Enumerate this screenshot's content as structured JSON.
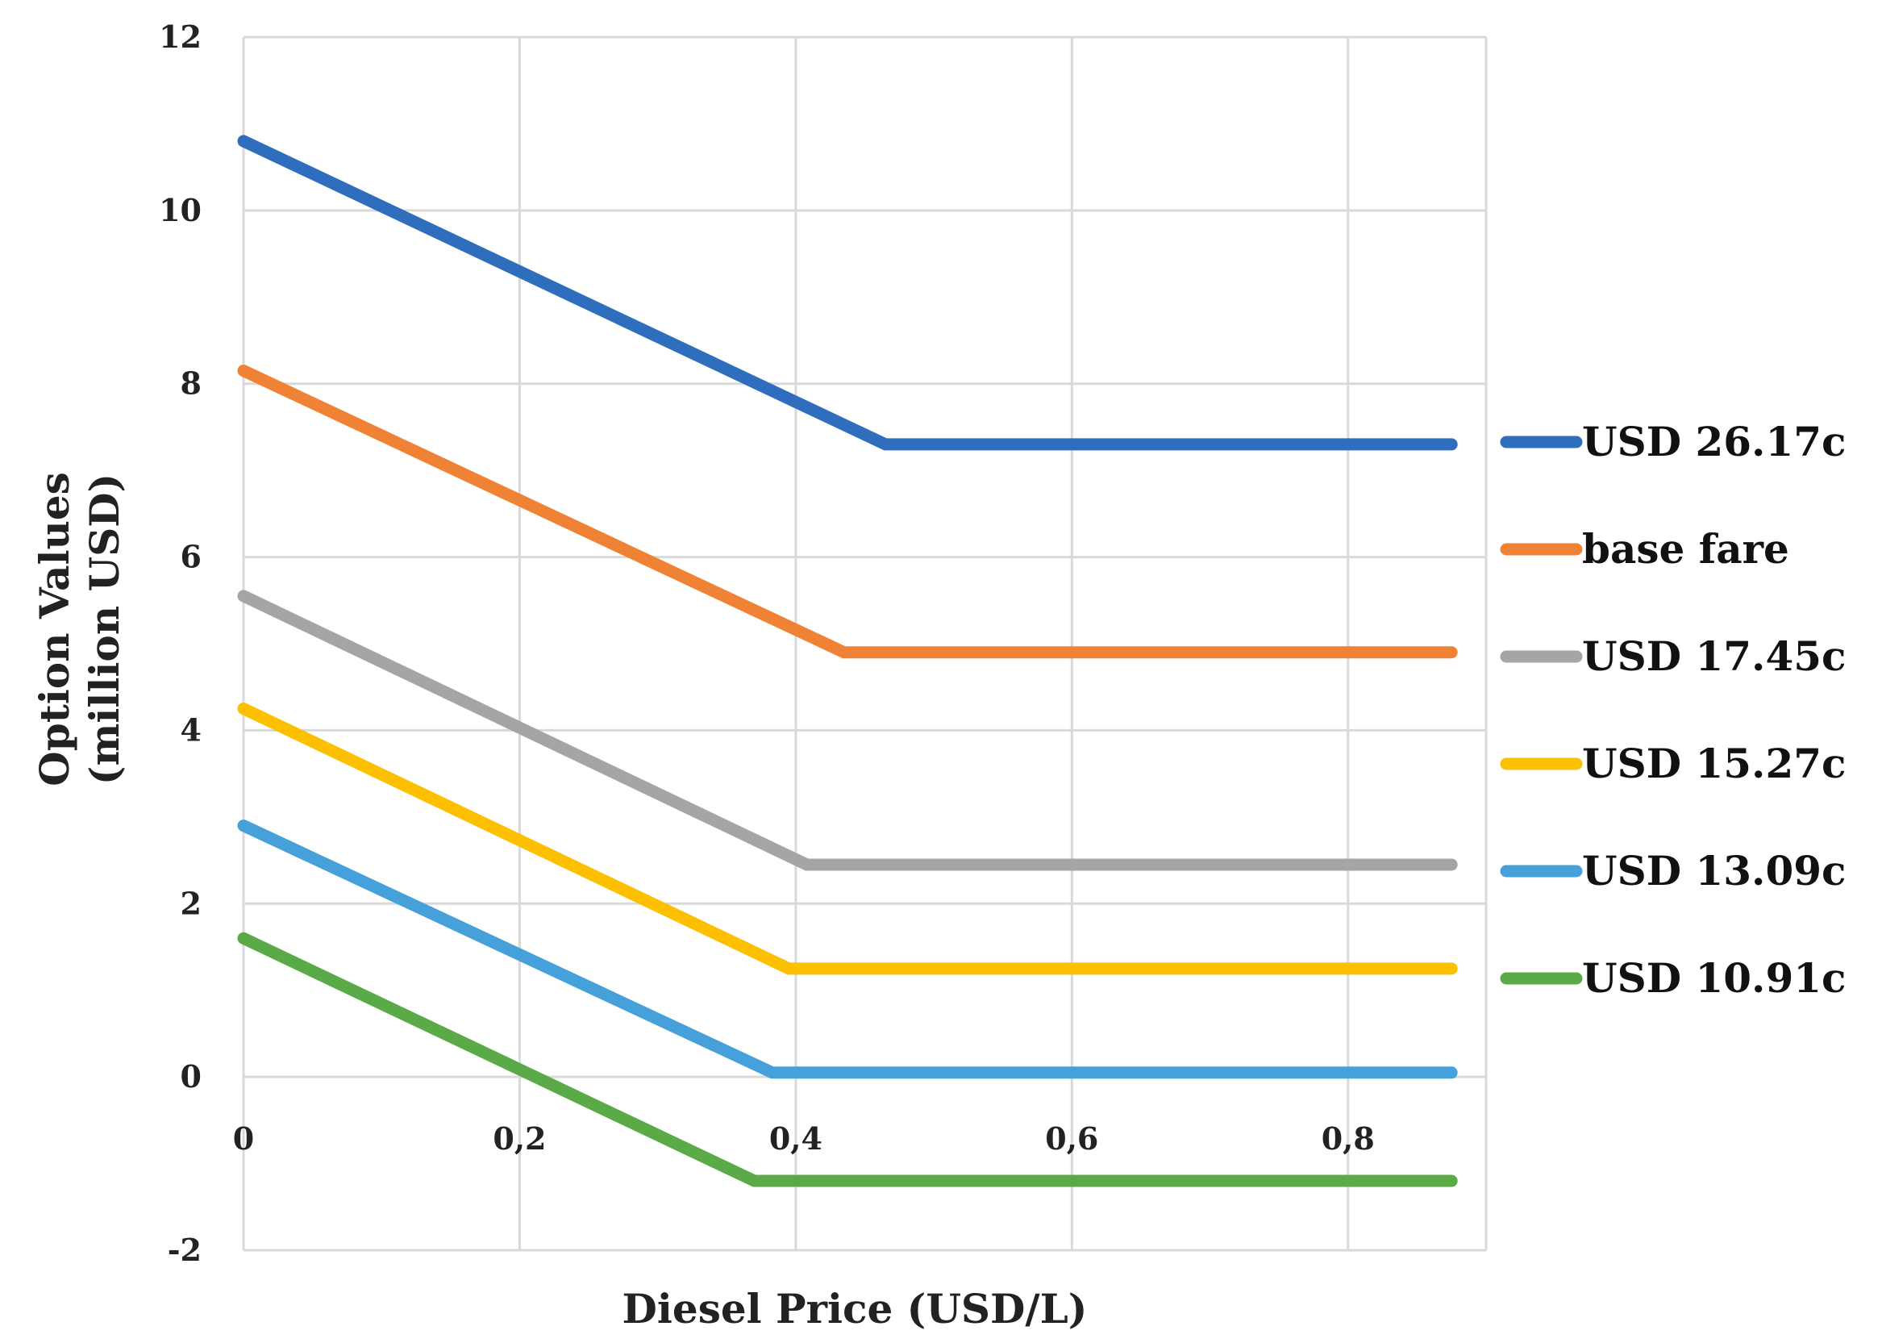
{
  "chart_data": {
    "type": "line",
    "xlabel": "Diesel Price (USD/L)",
    "ylabel_line1": "Option Values",
    "ylabel_line2": "(million USD)",
    "xlim": [
      0,
      0.9
    ],
    "ylim": [
      -2,
      12
    ],
    "x_ticks": [
      0,
      0.2,
      0.4,
      0.6,
      0.8
    ],
    "x_tick_labels": [
      "0",
      "0,2",
      "0,4",
      "0,6",
      "0,8"
    ],
    "y_ticks": [
      -2,
      0,
      2,
      4,
      6,
      8,
      10,
      12
    ],
    "y_tick_labels": [
      "-2",
      "0",
      "2",
      "4",
      "6",
      "8",
      "10",
      "12"
    ],
    "grid": true,
    "legend_position": "right",
    "series": [
      {
        "name": "USD 26.17c",
        "color": "#2f6ebc",
        "x": [
          0,
          0.465,
          0.875
        ],
        "y": [
          10.8,
          7.3,
          7.3
        ]
      },
      {
        "name": "base fare",
        "color": "#f08236",
        "x": [
          0,
          0.435,
          0.875
        ],
        "y": [
          8.15,
          4.9,
          4.9
        ]
      },
      {
        "name": "USD 17.45c",
        "color": "#a5a5a5",
        "x": [
          0,
          0.408,
          0.875
        ],
        "y": [
          5.55,
          2.45,
          2.45
        ]
      },
      {
        "name": "USD 15.27c",
        "color": "#fdc000",
        "x": [
          0,
          0.395,
          0.875
        ],
        "y": [
          4.25,
          1.25,
          1.25
        ]
      },
      {
        "name": "USD 13.09c",
        "color": "#46a0da",
        "x": [
          0,
          0.383,
          0.875
        ],
        "y": [
          2.9,
          0.05,
          0.05
        ]
      },
      {
        "name": "USD 10.91c",
        "color": "#5aab47",
        "x": [
          0,
          0.37,
          0.875
        ],
        "y": [
          1.6,
          -1.2,
          -1.2
        ]
      }
    ]
  }
}
